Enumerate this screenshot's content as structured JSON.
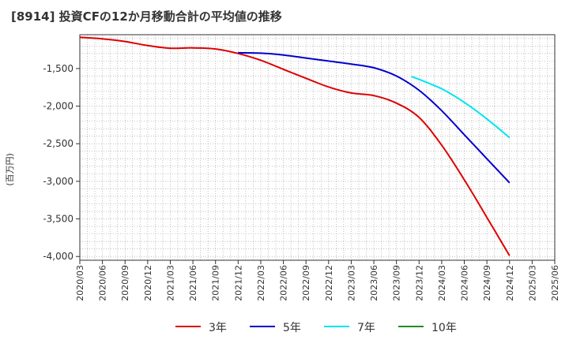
{
  "title": "[8914]  投資CFの12か月移動合計の平均値の推移",
  "chart_data": {
    "type": "line",
    "title": "[8914]  投資CFの12か月移動合計の平均値の推移",
    "xlabel": "",
    "ylabel": "(百万円)",
    "ylim": [
      -4050,
      -1050
    ],
    "yticks": [
      -1500,
      -2000,
      -2500,
      -3000,
      -3500,
      -4000
    ],
    "ytick_labels": [
      "-1,500",
      "-2,000",
      "-2,500",
      "-3,000",
      "-3,500",
      "-4,000"
    ],
    "grid": true,
    "legend_position": "bottom",
    "x_tick_labels": [
      "2020/03",
      "2020/06",
      "2020/09",
      "2020/12",
      "2021/03",
      "2021/06",
      "2021/09",
      "2021/12",
      "2022/03",
      "2022/06",
      "2022/09",
      "2022/12",
      "2023/03",
      "2023/06",
      "2023/09",
      "2023/12",
      "2024/03",
      "2024/06",
      "2024/09",
      "2024/12",
      "2025/03",
      "2025/06"
    ],
    "series": [
      {
        "name": "3年",
        "color": "#dd0000",
        "points": [
          [
            "2020/03",
            -1085
          ],
          [
            "2020/06",
            -1105
          ],
          [
            "2020/09",
            -1140
          ],
          [
            "2020/12",
            -1195
          ],
          [
            "2021/03",
            -1230
          ],
          [
            "2021/06",
            -1225
          ],
          [
            "2021/09",
            -1240
          ],
          [
            "2021/12",
            -1300
          ],
          [
            "2022/03",
            -1390
          ],
          [
            "2022/06",
            -1510
          ],
          [
            "2022/09",
            -1630
          ],
          [
            "2022/12",
            -1745
          ],
          [
            "2023/03",
            -1825
          ],
          [
            "2023/06",
            -1860
          ],
          [
            "2023/09",
            -1960
          ],
          [
            "2023/12",
            -2150
          ],
          [
            "2024/03",
            -2520
          ],
          [
            "2024/06",
            -2980
          ],
          [
            "2024/09",
            -3480
          ],
          [
            "2024/12",
            -3990
          ]
        ]
      },
      {
        "name": "5年",
        "color": "#0000cc",
        "points": [
          [
            "2021/12",
            -1290
          ],
          [
            "2022/03",
            -1295
          ],
          [
            "2022/06",
            -1320
          ],
          [
            "2022/09",
            -1360
          ],
          [
            "2022/12",
            -1400
          ],
          [
            "2023/03",
            -1440
          ],
          [
            "2023/06",
            -1490
          ],
          [
            "2023/09",
            -1600
          ],
          [
            "2023/12",
            -1790
          ],
          [
            "2024/03",
            -2060
          ],
          [
            "2024/06",
            -2380
          ],
          [
            "2024/09",
            -2700
          ],
          [
            "2024/12",
            -3020
          ]
        ]
      },
      {
        "name": "7年",
        "color": "#00e5ee",
        "points": [
          [
            "2023/11",
            -1605
          ],
          [
            "2024/03",
            -1770
          ],
          [
            "2024/06",
            -1950
          ],
          [
            "2024/09",
            -2170
          ],
          [
            "2024/12",
            -2420
          ]
        ]
      },
      {
        "name": "10年",
        "color": "#228b22",
        "points": []
      }
    ]
  }
}
